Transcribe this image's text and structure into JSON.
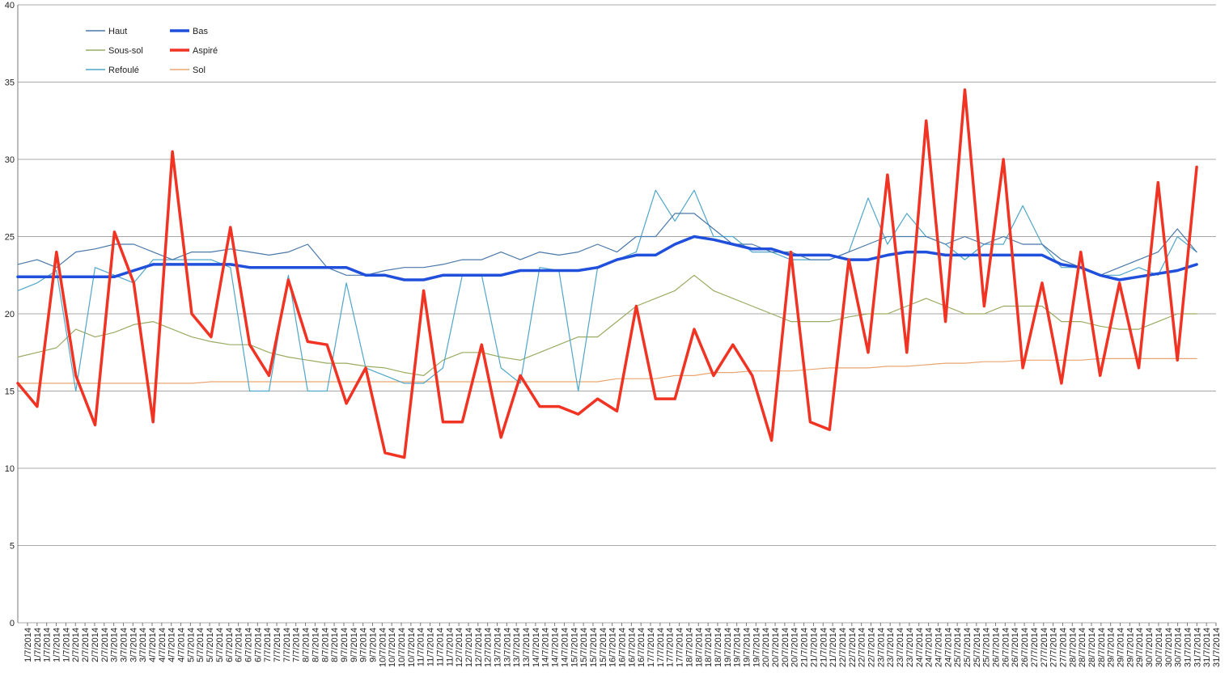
{
  "chart_data": {
    "type": "line",
    "title": "",
    "xlabel": "",
    "ylabel": "",
    "ylim": [
      0,
      40
    ],
    "yticks": [
      0,
      5,
      10,
      15,
      20,
      25,
      30,
      35,
      40
    ],
    "grid": true,
    "legend_position": "top-left",
    "x": [
      1,
      1.5,
      2,
      2.5,
      3,
      3.5,
      4,
      4.5,
      5,
      5.5,
      6,
      6.5,
      7,
      7.5,
      8,
      8.5,
      9,
      9.5,
      10,
      10.5,
      11,
      11.5,
      12,
      12.5,
      13,
      13.5,
      14,
      14.5,
      15,
      15.5,
      16,
      16.5,
      17,
      17.5,
      18,
      18.5,
      19,
      19.5,
      20,
      20.5,
      21,
      21.5,
      22,
      22.5,
      23,
      23.5,
      24,
      24.5,
      25,
      25.5,
      26,
      26.5,
      27,
      27.5,
      28,
      28.5,
      29,
      29.5,
      30,
      30.5,
      31,
      31.5
    ],
    "x_tick_labels": [
      "1/7/2014",
      "1/7/2014",
      "1/7/2014",
      "1/7/2014",
      "1/7/2014",
      "2/7/2014",
      "2/7/2014",
      "2/7/2014",
      "2/7/2014",
      "3/7/2014",
      "3/7/2014",
      "3/7/2014",
      "3/7/2014",
      "4/7/2014",
      "4/7/2014",
      "4/7/2014",
      "4/7/2014",
      "5/7/2014",
      "5/7/2014",
      "5/7/2014",
      "5/7/2014",
      "6/7/2014",
      "6/7/2014",
      "6/7/2014",
      "6/7/2014",
      "7/7/2014",
      "7/7/2014",
      "7/7/2014",
      "7/7/2014",
      "8/7/2014",
      "8/7/2014",
      "8/7/2014",
      "8/7/2014",
      "9/7/2014",
      "9/7/2014",
      "9/7/2014",
      "9/7/2014",
      "10/7/2014",
      "10/7/2014",
      "10/7/2014",
      "10/7/2014",
      "11/7/2014",
      "11/7/2014",
      "11/7/2014",
      "11/7/2014",
      "12/7/2014",
      "12/7/2014",
      "12/7/2014",
      "12/7/2014",
      "13/7/2014",
      "13/7/2014",
      "13/7/2014",
      "13/7/2014",
      "14/7/2014",
      "14/7/2014",
      "14/7/2014",
      "14/7/2014",
      "15/7/2014",
      "15/7/2014",
      "15/7/2014",
      "15/7/2014",
      "16/7/2014",
      "16/7/2014",
      "16/7/2014",
      "16/7/2014",
      "17/7/2014",
      "17/7/2014",
      "17/7/2014",
      "17/7/2014",
      "18/7/2014",
      "18/7/2014",
      "18/7/2014",
      "18/7/2014",
      "19/7/2014",
      "19/7/2014",
      "19/7/2014",
      "19/7/2014",
      "20/7/2014",
      "20/7/2014",
      "20/7/2014",
      "20/7/2014",
      "21/7/2014",
      "21/7/2014",
      "21/7/2014",
      "21/7/2014",
      "22/7/2014",
      "22/7/2014",
      "22/7/2014",
      "22/7/2014",
      "23/7/2014",
      "23/7/2014",
      "23/7/2014",
      "23/7/2014",
      "24/7/2014",
      "24/7/2014",
      "24/7/2014",
      "24/7/2014",
      "25/7/2014",
      "25/7/2014",
      "25/7/2014",
      "25/7/2014",
      "26/7/2014",
      "26/7/2014",
      "26/7/2014",
      "26/7/2014",
      "27/7/2014",
      "27/7/2014",
      "27/7/2014",
      "27/7/2014",
      "28/7/2014",
      "28/7/2014",
      "28/7/2014",
      "28/7/2014",
      "29/7/2014",
      "29/7/2014",
      "29/7/2014",
      "29/7/2014",
      "30/7/2014",
      "30/7/2014",
      "30/7/2014",
      "30/7/2014",
      "31/7/2014",
      "31/7/2014",
      "31/7/2014",
      "31/7/2014"
    ],
    "series": [
      {
        "name": "Haut",
        "color": "#4a78a8",
        "values": [
          23.2,
          23.5,
          23.0,
          24.0,
          24.2,
          24.5,
          24.5,
          24.0,
          23.5,
          24.0,
          24.0,
          24.2,
          24.0,
          23.8,
          24.0,
          24.5,
          23.0,
          22.5,
          22.5,
          22.8,
          23.0,
          23.0,
          23.2,
          23.5,
          23.5,
          24.0,
          23.5,
          24.0,
          23.8,
          24.0,
          24.5,
          24.0,
          25.0,
          25.0,
          26.5,
          26.5,
          25.5,
          24.5,
          24.5,
          24.0,
          24.0,
          23.5,
          23.5,
          24.0,
          24.5,
          25.0,
          25.0,
          25.0,
          24.5,
          25.0,
          24.5,
          25.0,
          24.5,
          24.5,
          23.5,
          23.0,
          22.5,
          23.0,
          23.5,
          24.0,
          25.5,
          24.0
        ]
      },
      {
        "name": "Sous-sol",
        "color": "#9aab62",
        "values": [
          17.2,
          17.5,
          17.8,
          19.0,
          18.5,
          18.8,
          19.3,
          19.5,
          19.0,
          18.5,
          18.2,
          18.0,
          18.0,
          17.5,
          17.2,
          17.0,
          16.8,
          16.8,
          16.6,
          16.5,
          16.2,
          16.0,
          17.0,
          17.5,
          17.5,
          17.2,
          17.0,
          17.5,
          18.0,
          18.5,
          18.5,
          19.5,
          20.5,
          21.0,
          21.5,
          22.5,
          21.5,
          21.0,
          20.5,
          20.0,
          19.5,
          19.5,
          19.5,
          19.8,
          20.0,
          20.0,
          20.5,
          21.0,
          20.5,
          20.0,
          20.0,
          20.5,
          20.5,
          20.5,
          19.5,
          19.5,
          19.2,
          19.0,
          19.0,
          19.5,
          20.0,
          20.0
        ]
      },
      {
        "name": "Refoulé",
        "color": "#4fa6c8",
        "values": [
          21.5,
          22.0,
          22.8,
          15.0,
          23.0,
          22.5,
          22.0,
          23.5,
          23.5,
          23.5,
          23.5,
          23.0,
          15.0,
          15.0,
          22.5,
          15.0,
          15.0,
          22.0,
          16.5,
          16.0,
          15.5,
          15.5,
          16.5,
          22.5,
          22.5,
          16.5,
          15.5,
          23.0,
          22.8,
          15.0,
          23.0,
          23.5,
          24.0,
          28.0,
          26.0,
          28.0,
          25.0,
          25.0,
          24.0,
          24.0,
          23.5,
          23.5,
          23.5,
          24.0,
          27.5,
          24.5,
          26.5,
          25.0,
          24.5,
          23.5,
          24.5,
          24.5,
          27.0,
          24.5,
          23.0,
          23.0,
          22.5,
          22.5,
          23.0,
          22.5,
          25.0,
          24.0
        ]
      },
      {
        "name": "Bas",
        "color": "#1f4fdb",
        "values": [
          22.4,
          22.4,
          22.4,
          22.4,
          22.4,
          22.4,
          22.8,
          23.2,
          23.2,
          23.2,
          23.2,
          23.2,
          23.0,
          23.0,
          23.0,
          23.0,
          23.0,
          23.0,
          22.5,
          22.5,
          22.2,
          22.2,
          22.5,
          22.5,
          22.5,
          22.5,
          22.8,
          22.8,
          22.8,
          22.8,
          23.0,
          23.5,
          23.8,
          23.8,
          24.5,
          25.0,
          24.8,
          24.5,
          24.2,
          24.2,
          23.8,
          23.8,
          23.8,
          23.5,
          23.5,
          23.8,
          24.0,
          24.0,
          23.8,
          23.8,
          23.8,
          23.8,
          23.8,
          23.8,
          23.2,
          23.0,
          22.5,
          22.2,
          22.4,
          22.6,
          22.8,
          23.2
        ]
      },
      {
        "name": "Aspiré",
        "color": "#f03323",
        "values": [
          15.5,
          14.0,
          24.0,
          16.0,
          12.8,
          25.3,
          22.0,
          13.0,
          30.5,
          20.0,
          18.5,
          25.6,
          18.0,
          16.0,
          22.2,
          18.2,
          18.0,
          14.2,
          16.5,
          11.0,
          10.7,
          21.5,
          13.0,
          13.0,
          18.0,
          12.0,
          16.0,
          14.0,
          14.0,
          13.5,
          14.5,
          13.7,
          20.5,
          14.5,
          14.5,
          19.0,
          16.0,
          18.0,
          16.0,
          11.8,
          24.0,
          13.0,
          12.5,
          23.5,
          17.5,
          29.0,
          17.5,
          32.5,
          19.5,
          34.5,
          20.5,
          30.0,
          16.5,
          22.0,
          15.5,
          24.0,
          16.0,
          22.0,
          16.5,
          28.5,
          17.0,
          29.5
        ]
      },
      {
        "name": "Sol",
        "color": "#e8a672",
        "values": [
          15.5,
          15.5,
          15.5,
          15.5,
          15.5,
          15.5,
          15.5,
          15.5,
          15.5,
          15.5,
          15.6,
          15.6,
          15.6,
          15.6,
          15.6,
          15.6,
          15.6,
          15.6,
          15.6,
          15.6,
          15.6,
          15.6,
          15.6,
          15.6,
          15.6,
          15.6,
          15.6,
          15.6,
          15.6,
          15.6,
          15.6,
          15.8,
          15.8,
          15.8,
          16.0,
          16.0,
          16.2,
          16.2,
          16.3,
          16.3,
          16.3,
          16.4,
          16.5,
          16.5,
          16.5,
          16.6,
          16.6,
          16.7,
          16.8,
          16.8,
          16.9,
          16.9,
          17.0,
          17.0,
          17.0,
          17.0,
          17.1,
          17.1,
          17.1,
          17.1,
          17.1,
          17.1
        ]
      }
    ]
  }
}
